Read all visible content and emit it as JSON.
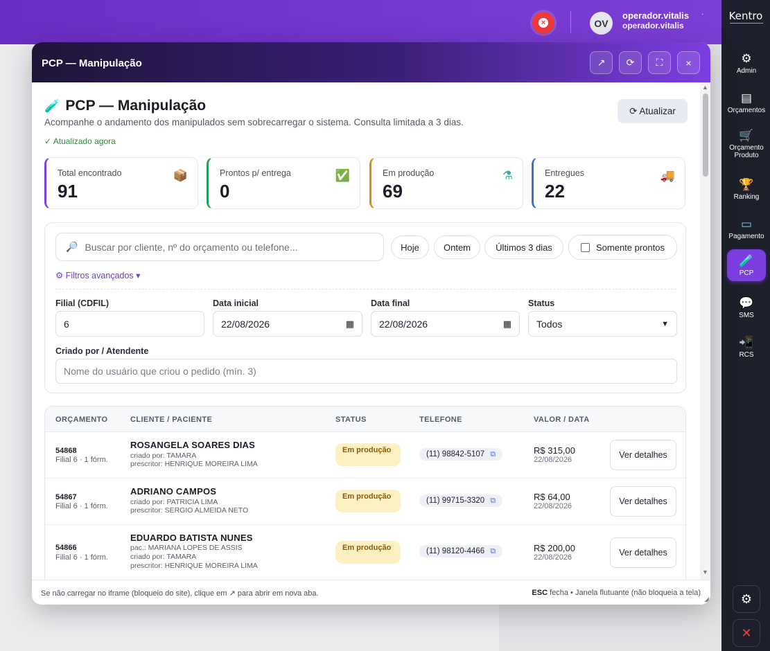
{
  "topbar": {
    "user_initials": "OV",
    "user_name": "operador.vitalis",
    "user_login": "operador.vitalis",
    "accent": "#7b3fe0"
  },
  "sidebar": {
    "brand": "Kentro",
    "items": [
      {
        "label": "Admin",
        "icon": "⚙"
      },
      {
        "label": "Orçamentos",
        "icon": "▤"
      },
      {
        "label": "Orçamento Produto",
        "icon": "🛒"
      },
      {
        "label": "Ranking",
        "icon": "🏆"
      },
      {
        "label": "Pagamento",
        "icon": "▭"
      },
      {
        "label": "PCP",
        "icon": "🧪"
      },
      {
        "label": "SMS",
        "icon": "💬"
      },
      {
        "label": "RCS",
        "icon": "📲"
      }
    ],
    "settings_icon": "⚙",
    "close_icon": "✕"
  },
  "modal": {
    "title": "PCP — Manipulação",
    "buttons": {
      "open_icon": "↗",
      "reload_icon": "⟳",
      "fullscreen_icon": "⛶",
      "close_icon": "×"
    }
  },
  "page": {
    "icon": "🧪",
    "title": "PCP — Manipulação",
    "description": "Acompanhe o andamento dos manipulados sem sobrecarregar o sistema. Consulta limitada a 3 dias.",
    "updated": "✓ Atualizado agora",
    "refresh_label": "⟳ Atualizar"
  },
  "kpis": [
    {
      "label": "Total encontrado",
      "value": "91",
      "icon": "📦",
      "color": "#7b3fe0"
    },
    {
      "label": "Prontos p/ entrega",
      "value": "0",
      "icon": "✅",
      "color": "#22a05a"
    },
    {
      "label": "Em produção",
      "value": "69",
      "icon": "⚗",
      "color": "#e08a16"
    },
    {
      "label": "Entregues",
      "value": "22",
      "icon": "🚚",
      "color": "#3d6fd6"
    }
  ],
  "filters": {
    "search_placeholder": "Buscar por cliente, nº do orçamento ou telefone...",
    "chips": [
      "Hoje",
      "Ontem",
      "Últimos 3 dias"
    ],
    "only_ready": "Somente prontos",
    "advanced": "⚙ Filtros avançados ▾",
    "filial_label": "Filial (CDFIL)",
    "filial_value": "6",
    "start_label": "Data inicial",
    "start_value": "22/08/2026",
    "end_label": "Data final",
    "end_value": "22/08/2026",
    "status_label": "Status",
    "status_value": "Todos",
    "creator_label": "Criado por / Atendente",
    "creator_placeholder": "Nome do usuário que criou o pedido (mín. 3)"
  },
  "table": {
    "headers": [
      "ORÇAMENTO",
      "CLIENTE / PACIENTE",
      "STATUS",
      "TELEFONE",
      "VALOR / DATA"
    ],
    "rows": [
      {
        "id": "54868",
        "filial": "Filial 6 · 1 fórm.",
        "client": "ROSANGELA SOARES DIAS",
        "lines": [
          "criado por: TAMARA",
          "prescritor: HENRIQUE MOREIRA LIMA"
        ],
        "status": "Em produção",
        "phone": "(11) 98842-5107",
        "value": "R$ 315,00",
        "date": "22/08/2026",
        "action": "Ver detalhes"
      },
      {
        "id": "54867",
        "filial": "Filial 6 · 1 fórm.",
        "client": "ADRIANO CAMPOS",
        "lines": [
          "criado por: PATRICIA LIMA",
          "prescritor: SERGIO ALMEIDA NETO"
        ],
        "status": "Em produção",
        "phone": "(11) 99715-3320",
        "value": "R$ 64,00",
        "date": "22/08/2026",
        "action": "Ver detalhes"
      },
      {
        "id": "54866",
        "filial": "Filial 6 · 1 fórm.",
        "client": "EDUARDO BATISTA NUNES",
        "lines": [
          "pac.: MARIANA LOPES DE ASSIS",
          "criado por: TAMARA",
          "prescritor: HENRIQUE MOREIRA LIMA"
        ],
        "status": "Em produção",
        "phone": "(11) 98120-4466",
        "value": "R$ 200,00",
        "date": "22/08/2026",
        "action": "Ver detalhes"
      }
    ]
  },
  "footer": {
    "left_a": "Se não carregar no iframe (bloqueio do site), clique em",
    "left_icon": "↗",
    "left_b": "para abrir em nova aba.",
    "esc": "ESC",
    "right": "fecha • Janela flutuante (não bloqueia a tela)"
  }
}
